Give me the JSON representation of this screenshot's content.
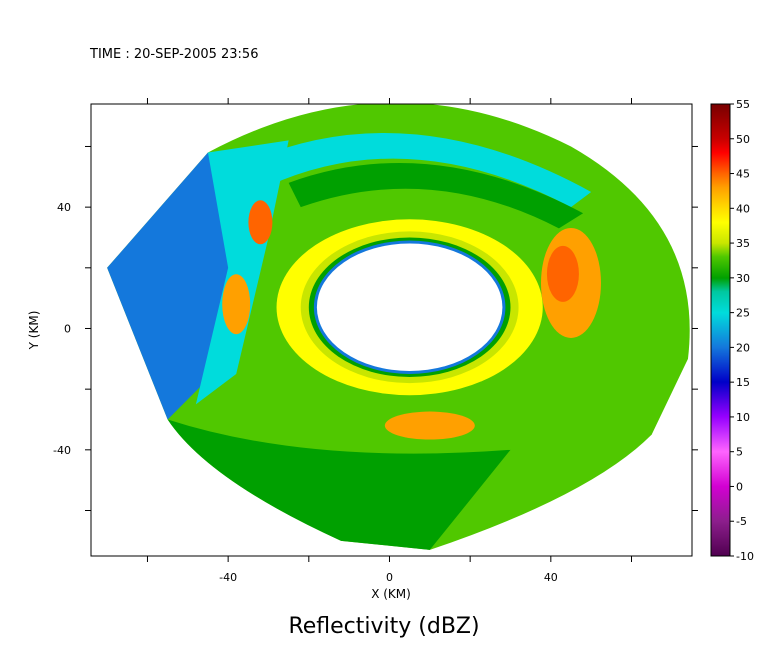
{
  "header": {
    "time_label": "TIME : 20-SEP-2005 23:56"
  },
  "chart_data": {
    "type": "heatmap",
    "title": "Reflectivity (dBZ)",
    "xlabel": "X (KM)",
    "ylabel": "Y (KM)",
    "xlim": [
      -74,
      75
    ],
    "ylim": [
      -75,
      74
    ],
    "x_ticks": [
      -40,
      0,
      40
    ],
    "y_ticks": [
      40,
      0,
      -40
    ],
    "colorbar": {
      "ticks": [
        55,
        50,
        45,
        40,
        35,
        30,
        25,
        20,
        15,
        10,
        5,
        0,
        -5,
        -10
      ],
      "min": -10,
      "max": 55
    },
    "grid": false,
    "legend_position": "right",
    "colors": {
      "n10": "#500050",
      "n5": "#8c1e8c",
      "c0": "#d200d2",
      "c5": "#ff64ff",
      "c10": "#9600ff",
      "c15": "#0000c8",
      "c20": "#1478dc",
      "c25": "#00dcdc",
      "c28": "#00c8a0",
      "c30": "#00a000",
      "c33": "#50c800",
      "c35": "#c8e600",
      "c38": "#ffff00",
      "c40": "#ffdc00",
      "c43": "#ffa000",
      "c45": "#ff6400",
      "c48": "#ff0000",
      "c50": "#c80000",
      "c55": "#780000"
    }
  }
}
